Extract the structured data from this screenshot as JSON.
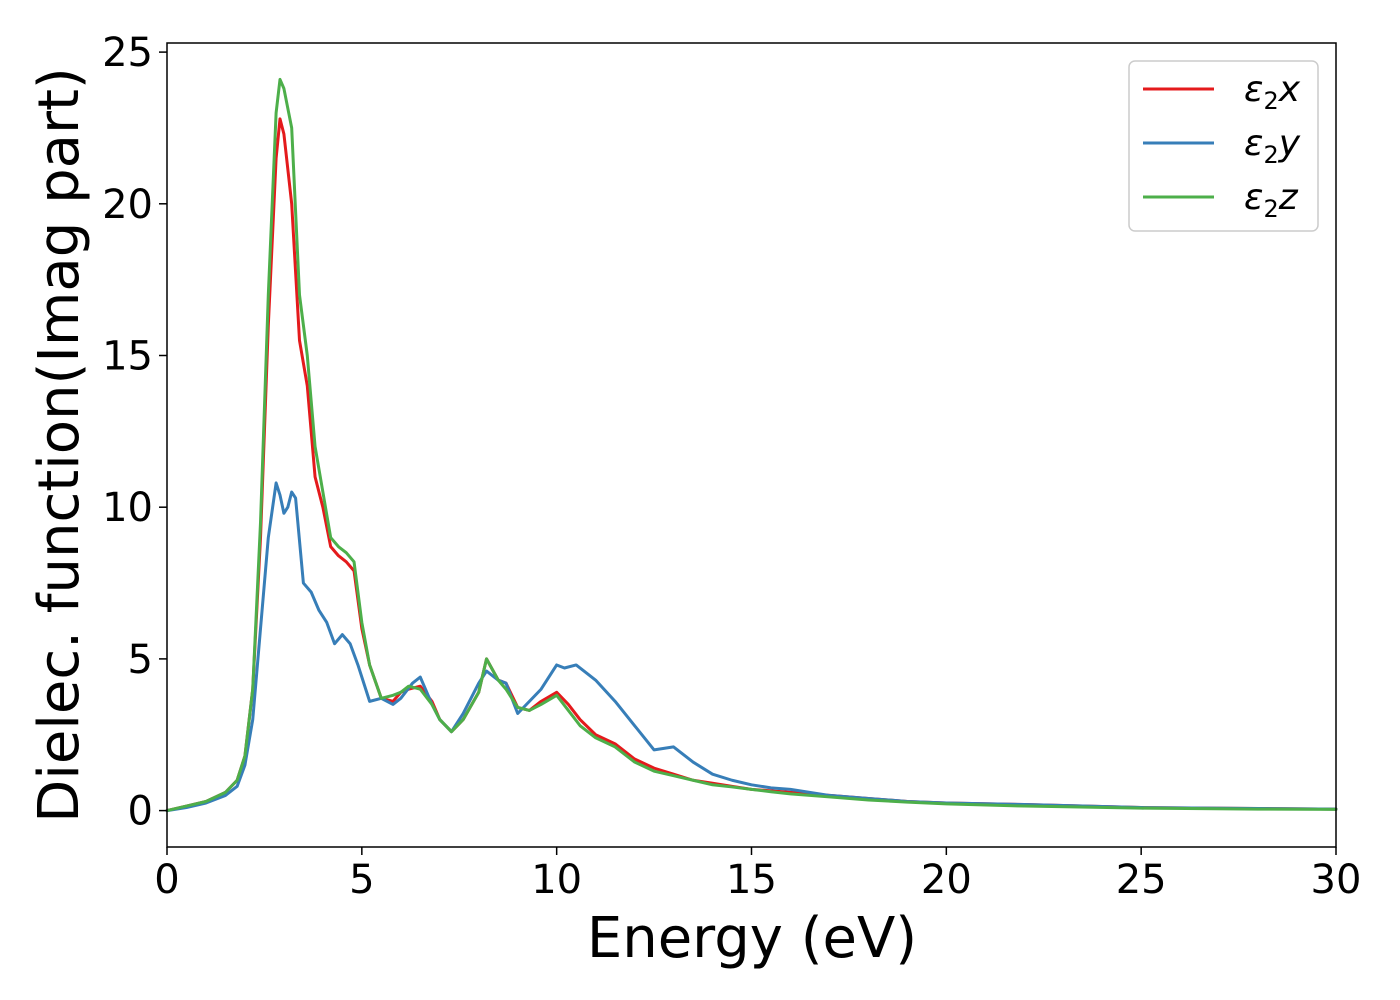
{
  "chart_data": {
    "type": "line",
    "title": "",
    "xlabel": "Energy (eV)",
    "ylabel": "Dielec. function(Imag part)",
    "xlim": [
      0,
      30
    ],
    "ylim": [
      -1.2,
      25.3
    ],
    "xticks": [
      0,
      5,
      10,
      15,
      20,
      25,
      30
    ],
    "yticks": [
      0,
      5,
      10,
      15,
      20,
      25
    ],
    "grid": false,
    "legend_position": "top-right",
    "series": [
      {
        "name": "ε₂x",
        "legend_base": "ε",
        "legend_sub": "2",
        "legend_suffix": "x",
        "color": "#e41a1c",
        "x": [
          0,
          0.5,
          1.0,
          1.5,
          1.8,
          2.0,
          2.2,
          2.4,
          2.6,
          2.8,
          2.9,
          3.0,
          3.2,
          3.4,
          3.6,
          3.8,
          4.0,
          4.2,
          4.4,
          4.6,
          4.8,
          5.0,
          5.2,
          5.5,
          5.8,
          6.0,
          6.2,
          6.5,
          6.8,
          7.0,
          7.3,
          7.6,
          8.0,
          8.2,
          8.5,
          8.7,
          9.0,
          9.3,
          9.6,
          10.0,
          10.3,
          10.6,
          11.0,
          11.5,
          12.0,
          12.5,
          13.0,
          13.5,
          14.0,
          14.5,
          15.0,
          15.5,
          16.0,
          17.0,
          18.0,
          19.0,
          20.0,
          22.0,
          25.0,
          28.0,
          30.0
        ],
        "y": [
          0,
          0.15,
          0.3,
          0.6,
          1.0,
          1.8,
          4.0,
          9.0,
          16.0,
          21.5,
          22.8,
          22.3,
          20.0,
          15.5,
          14.0,
          11.0,
          10.0,
          8.7,
          8.4,
          8.2,
          7.9,
          6.0,
          4.8,
          3.7,
          3.6,
          3.9,
          4.0,
          4.1,
          3.6,
          3.0,
          2.6,
          3.0,
          3.9,
          5.0,
          4.3,
          4.2,
          3.4,
          3.3,
          3.6,
          3.9,
          3.5,
          3.0,
          2.5,
          2.2,
          1.7,
          1.4,
          1.2,
          1.0,
          0.9,
          0.8,
          0.7,
          0.65,
          0.6,
          0.5,
          0.4,
          0.3,
          0.25,
          0.2,
          0.1,
          0.07,
          0.05
        ]
      },
      {
        "name": "ε₂y",
        "legend_base": "ε",
        "legend_sub": "2",
        "legend_suffix": "y",
        "color": "#377eb8",
        "x": [
          0,
          0.5,
          1.0,
          1.5,
          1.8,
          2.0,
          2.2,
          2.4,
          2.6,
          2.8,
          2.9,
          3.0,
          3.1,
          3.2,
          3.3,
          3.5,
          3.7,
          3.9,
          4.1,
          4.3,
          4.5,
          4.7,
          4.9,
          5.2,
          5.5,
          5.8,
          6.0,
          6.3,
          6.5,
          6.8,
          7.0,
          7.3,
          7.6,
          8.0,
          8.2,
          8.5,
          8.7,
          9.0,
          9.3,
          9.6,
          10.0,
          10.2,
          10.5,
          10.8,
          11.0,
          11.5,
          12.0,
          12.5,
          13.0,
          13.5,
          14.0,
          14.5,
          15.0,
          15.5,
          16.0,
          17.0,
          18.0,
          19.0,
          20.0,
          22.0,
          25.0,
          28.0,
          30.0
        ],
        "y": [
          0,
          0.1,
          0.25,
          0.5,
          0.8,
          1.5,
          3.0,
          6.0,
          9.0,
          10.8,
          10.4,
          9.8,
          10.0,
          10.5,
          10.3,
          7.5,
          7.2,
          6.6,
          6.2,
          5.5,
          5.8,
          5.5,
          4.8,
          3.6,
          3.7,
          3.5,
          3.7,
          4.2,
          4.4,
          3.5,
          3.0,
          2.6,
          3.2,
          4.2,
          4.6,
          4.3,
          4.2,
          3.2,
          3.6,
          4.0,
          4.8,
          4.7,
          4.8,
          4.5,
          4.3,
          3.6,
          2.8,
          2.0,
          2.1,
          1.6,
          1.2,
          1.0,
          0.85,
          0.75,
          0.7,
          0.5,
          0.4,
          0.3,
          0.25,
          0.2,
          0.1,
          0.07,
          0.05
        ]
      },
      {
        "name": "ε₂z",
        "legend_base": "ε",
        "legend_sub": "2",
        "legend_suffix": "z",
        "color": "#4daf4a",
        "x": [
          0,
          0.5,
          1.0,
          1.5,
          1.8,
          2.0,
          2.2,
          2.4,
          2.6,
          2.8,
          2.9,
          3.0,
          3.2,
          3.4,
          3.6,
          3.8,
          4.0,
          4.2,
          4.4,
          4.6,
          4.8,
          5.0,
          5.2,
          5.5,
          5.8,
          6.0,
          6.2,
          6.5,
          6.8,
          7.0,
          7.3,
          7.6,
          8.0,
          8.2,
          8.5,
          8.7,
          9.0,
          9.3,
          9.6,
          10.0,
          10.3,
          10.6,
          11.0,
          11.5,
          12.0,
          12.5,
          13.0,
          13.5,
          14.0,
          14.5,
          15.0,
          15.5,
          16.0,
          17.0,
          18.0,
          19.0,
          20.0,
          22.0,
          25.0,
          28.0,
          30.0
        ],
        "y": [
          0,
          0.15,
          0.3,
          0.6,
          1.0,
          1.8,
          4.0,
          9.5,
          17.0,
          23.0,
          24.1,
          23.8,
          22.5,
          17.0,
          15.0,
          12.0,
          10.5,
          9.0,
          8.7,
          8.5,
          8.2,
          6.2,
          4.8,
          3.7,
          3.8,
          3.9,
          4.1,
          4.0,
          3.5,
          3.0,
          2.6,
          3.0,
          3.9,
          5.0,
          4.3,
          4.0,
          3.4,
          3.3,
          3.5,
          3.8,
          3.3,
          2.8,
          2.4,
          2.1,
          1.6,
          1.3,
          1.15,
          1.0,
          0.85,
          0.78,
          0.7,
          0.62,
          0.55,
          0.45,
          0.35,
          0.28,
          0.22,
          0.15,
          0.08,
          0.05,
          0.04
        ]
      }
    ]
  }
}
